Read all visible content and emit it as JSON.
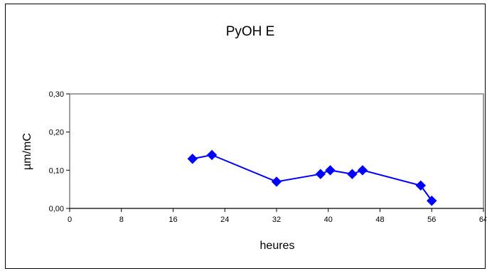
{
  "chart_data": {
    "type": "scatter",
    "title": "PyOH  E",
    "xlabel": "heures",
    "ylabel": "µm/mC",
    "xlim": [
      0,
      64
    ],
    "ylim": [
      0,
      0.3
    ],
    "x_ticks": [
      {
        "value": 0,
        "label": "0"
      },
      {
        "value": 8,
        "label": "8"
      },
      {
        "value": 16,
        "label": "16"
      },
      {
        "value": 24,
        "label": "24"
      },
      {
        "value": 32,
        "label": "32"
      },
      {
        "value": 40,
        "label": "40"
      },
      {
        "value": 48,
        "label": "48"
      },
      {
        "value": 56,
        "label": "56"
      },
      {
        "value": 64,
        "label": "64"
      }
    ],
    "y_ticks": [
      {
        "value": 0,
        "label": "0,00"
      },
      {
        "value": 0.1,
        "label": "0,10"
      },
      {
        "value": 0.2,
        "label": "0,20"
      },
      {
        "value": 0.3,
        "label": "0,30"
      }
    ],
    "grid": false,
    "legend": "none",
    "series": [
      {
        "color": "#0000FF",
        "marker": "diamond",
        "line": true,
        "points": [
          {
            "x": 19,
            "y": 0.13
          },
          {
            "x": 22,
            "y": 0.14
          },
          {
            "x": 32,
            "y": 0.07
          },
          {
            "x": 38.8,
            "y": 0.09
          },
          {
            "x": 40.3,
            "y": 0.1
          },
          {
            "x": 43.7,
            "y": 0.09
          },
          {
            "x": 45.3,
            "y": 0.1
          },
          {
            "x": 54.3,
            "y": 0.06
          },
          {
            "x": 56,
            "y": 0.02
          }
        ]
      }
    ],
    "plot_area_border_color": "#808080"
  }
}
